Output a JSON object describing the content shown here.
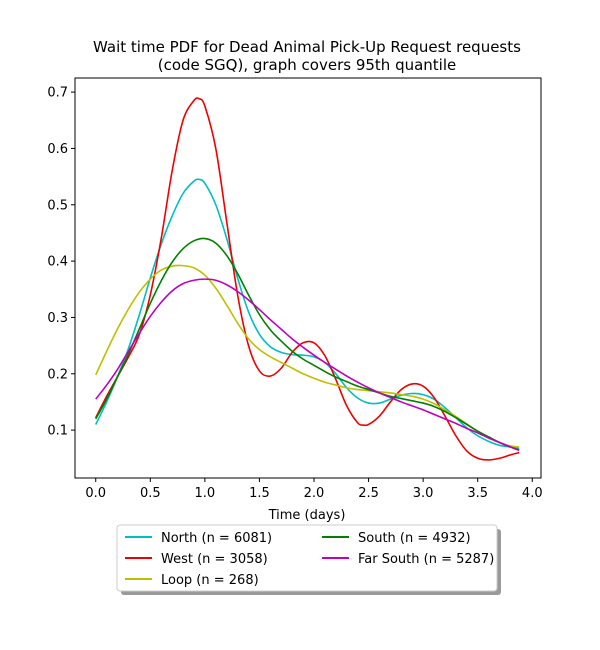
{
  "chart_data": {
    "type": "line",
    "title_line1": "Wait time PDF for Dead Animal Pick-Up Request  requests",
    "title_line2": "(code SGQ), graph covers 95th quantile",
    "xlabel": "Time (days)",
    "ylabel": "",
    "xlim": [
      -0.19,
      4.08
    ],
    "ylim": [
      0.015,
      0.725
    ],
    "xticks": [
      0.0,
      0.5,
      1.0,
      1.5,
      2.0,
      2.5,
      3.0,
      3.5,
      4.0
    ],
    "xtick_labels": [
      "0.0",
      "0.5",
      "1.0",
      "1.5",
      "2.0",
      "2.5",
      "3.0",
      "3.5",
      "4.0"
    ],
    "yticks": [
      0.1,
      0.2,
      0.3,
      0.4,
      0.5,
      0.6,
      0.7
    ],
    "ytick_labels": [
      "0.1",
      "0.2",
      "0.3",
      "0.4",
      "0.5",
      "0.6",
      "0.7"
    ],
    "grid": false,
    "legend_position": "below-center",
    "legend_columns": 2,
    "series": [
      {
        "name": "North (n = 6081)",
        "color": "#00bfbf",
        "points": [
          [
            0.0,
            0.11
          ],
          [
            0.1,
            0.15
          ],
          [
            0.2,
            0.195
          ],
          [
            0.3,
            0.245
          ],
          [
            0.4,
            0.305
          ],
          [
            0.5,
            0.37
          ],
          [
            0.6,
            0.43
          ],
          [
            0.7,
            0.48
          ],
          [
            0.8,
            0.52
          ],
          [
            0.9,
            0.542
          ],
          [
            0.95,
            0.545
          ],
          [
            1.0,
            0.538
          ],
          [
            1.1,
            0.5
          ],
          [
            1.2,
            0.44
          ],
          [
            1.3,
            0.37
          ],
          [
            1.4,
            0.31
          ],
          [
            1.5,
            0.27
          ],
          [
            1.6,
            0.248
          ],
          [
            1.7,
            0.238
          ],
          [
            1.8,
            0.234
          ],
          [
            1.9,
            0.233
          ],
          [
            2.0,
            0.23
          ],
          [
            2.1,
            0.22
          ],
          [
            2.2,
            0.2
          ],
          [
            2.3,
            0.175
          ],
          [
            2.4,
            0.157
          ],
          [
            2.5,
            0.148
          ],
          [
            2.6,
            0.148
          ],
          [
            2.7,
            0.155
          ],
          [
            2.8,
            0.162
          ],
          [
            2.9,
            0.165
          ],
          [
            3.0,
            0.163
          ],
          [
            3.1,
            0.155
          ],
          [
            3.2,
            0.14
          ],
          [
            3.3,
            0.122
          ],
          [
            3.4,
            0.104
          ],
          [
            3.5,
            0.09
          ],
          [
            3.6,
            0.08
          ],
          [
            3.7,
            0.073
          ],
          [
            3.8,
            0.07
          ],
          [
            3.88,
            0.068
          ]
        ]
      },
      {
        "name": "West (n = 3058)",
        "color": "#ee0000",
        "points": [
          [
            0.0,
            0.122
          ],
          [
            0.1,
            0.16
          ],
          [
            0.2,
            0.195
          ],
          [
            0.3,
            0.23
          ],
          [
            0.4,
            0.27
          ],
          [
            0.5,
            0.34
          ],
          [
            0.6,
            0.44
          ],
          [
            0.7,
            0.56
          ],
          [
            0.8,
            0.65
          ],
          [
            0.9,
            0.685
          ],
          [
            0.95,
            0.688
          ],
          [
            1.0,
            0.675
          ],
          [
            1.1,
            0.6
          ],
          [
            1.2,
            0.47
          ],
          [
            1.3,
            0.34
          ],
          [
            1.4,
            0.25
          ],
          [
            1.5,
            0.205
          ],
          [
            1.6,
            0.196
          ],
          [
            1.7,
            0.21
          ],
          [
            1.8,
            0.238
          ],
          [
            1.9,
            0.255
          ],
          [
            2.0,
            0.255
          ],
          [
            2.1,
            0.232
          ],
          [
            2.2,
            0.19
          ],
          [
            2.3,
            0.143
          ],
          [
            2.4,
            0.113
          ],
          [
            2.45,
            0.109
          ],
          [
            2.5,
            0.11
          ],
          [
            2.6,
            0.125
          ],
          [
            2.7,
            0.15
          ],
          [
            2.8,
            0.172
          ],
          [
            2.9,
            0.182
          ],
          [
            3.0,
            0.178
          ],
          [
            3.1,
            0.158
          ],
          [
            3.2,
            0.125
          ],
          [
            3.3,
            0.09
          ],
          [
            3.4,
            0.063
          ],
          [
            3.5,
            0.05
          ],
          [
            3.6,
            0.047
          ],
          [
            3.7,
            0.05
          ],
          [
            3.8,
            0.056
          ],
          [
            3.88,
            0.06
          ]
        ]
      },
      {
        "name": "Loop (n = 268)",
        "color": "#bfbf00",
        "points": [
          [
            0.0,
            0.198
          ],
          [
            0.1,
            0.24
          ],
          [
            0.2,
            0.28
          ],
          [
            0.3,
            0.315
          ],
          [
            0.4,
            0.345
          ],
          [
            0.5,
            0.368
          ],
          [
            0.6,
            0.384
          ],
          [
            0.7,
            0.391
          ],
          [
            0.8,
            0.392
          ],
          [
            0.9,
            0.388
          ],
          [
            1.0,
            0.375
          ],
          [
            1.1,
            0.352
          ],
          [
            1.2,
            0.322
          ],
          [
            1.3,
            0.29
          ],
          [
            1.4,
            0.262
          ],
          [
            1.5,
            0.243
          ],
          [
            1.6,
            0.23
          ],
          [
            1.7,
            0.22
          ],
          [
            1.8,
            0.21
          ],
          [
            1.9,
            0.2
          ],
          [
            2.0,
            0.192
          ],
          [
            2.1,
            0.185
          ],
          [
            2.2,
            0.18
          ],
          [
            2.3,
            0.175
          ],
          [
            2.4,
            0.172
          ],
          [
            2.5,
            0.17
          ],
          [
            2.6,
            0.168
          ],
          [
            2.7,
            0.166
          ],
          [
            2.8,
            0.163
          ],
          [
            2.9,
            0.16
          ],
          [
            3.0,
            0.155
          ],
          [
            3.1,
            0.147
          ],
          [
            3.2,
            0.136
          ],
          [
            3.3,
            0.124
          ],
          [
            3.4,
            0.111
          ],
          [
            3.5,
            0.098
          ],
          [
            3.6,
            0.087
          ],
          [
            3.7,
            0.078
          ],
          [
            3.8,
            0.072
          ],
          [
            3.88,
            0.07
          ]
        ]
      },
      {
        "name": "South (n = 4932)",
        "color": "#008000",
        "points": [
          [
            0.0,
            0.12
          ],
          [
            0.1,
            0.155
          ],
          [
            0.2,
            0.195
          ],
          [
            0.3,
            0.235
          ],
          [
            0.4,
            0.28
          ],
          [
            0.5,
            0.325
          ],
          [
            0.6,
            0.365
          ],
          [
            0.7,
            0.398
          ],
          [
            0.8,
            0.422
          ],
          [
            0.9,
            0.436
          ],
          [
            1.0,
            0.44
          ],
          [
            1.1,
            0.432
          ],
          [
            1.2,
            0.41
          ],
          [
            1.3,
            0.378
          ],
          [
            1.4,
            0.34
          ],
          [
            1.5,
            0.305
          ],
          [
            1.6,
            0.278
          ],
          [
            1.7,
            0.258
          ],
          [
            1.8,
            0.24
          ],
          [
            1.9,
            0.226
          ],
          [
            2.0,
            0.215
          ],
          [
            2.1,
            0.204
          ],
          [
            2.2,
            0.194
          ],
          [
            2.3,
            0.186
          ],
          [
            2.4,
            0.178
          ],
          [
            2.5,
            0.172
          ],
          [
            2.6,
            0.166
          ],
          [
            2.7,
            0.16
          ],
          [
            2.8,
            0.156
          ],
          [
            2.9,
            0.152
          ],
          [
            3.0,
            0.148
          ],
          [
            3.1,
            0.142
          ],
          [
            3.2,
            0.133
          ],
          [
            3.3,
            0.122
          ],
          [
            3.4,
            0.11
          ],
          [
            3.5,
            0.098
          ],
          [
            3.6,
            0.088
          ],
          [
            3.7,
            0.078
          ],
          [
            3.8,
            0.07
          ],
          [
            3.88,
            0.065
          ]
        ]
      },
      {
        "name": "Far South (n = 5287)",
        "color": "#bf00bf",
        "points": [
          [
            0.0,
            0.155
          ],
          [
            0.1,
            0.18
          ],
          [
            0.2,
            0.208
          ],
          [
            0.3,
            0.24
          ],
          [
            0.4,
            0.272
          ],
          [
            0.5,
            0.302
          ],
          [
            0.6,
            0.327
          ],
          [
            0.7,
            0.347
          ],
          [
            0.8,
            0.36
          ],
          [
            0.9,
            0.366
          ],
          [
            1.0,
            0.368
          ],
          [
            1.1,
            0.366
          ],
          [
            1.2,
            0.358
          ],
          [
            1.3,
            0.346
          ],
          [
            1.4,
            0.331
          ],
          [
            1.5,
            0.314
          ],
          [
            1.6,
            0.296
          ],
          [
            1.7,
            0.279
          ],
          [
            1.8,
            0.262
          ],
          [
            1.9,
            0.247
          ],
          [
            2.0,
            0.233
          ],
          [
            2.1,
            0.22
          ],
          [
            2.2,
            0.208
          ],
          [
            2.3,
            0.196
          ],
          [
            2.4,
            0.185
          ],
          [
            2.5,
            0.175
          ],
          [
            2.6,
            0.166
          ],
          [
            2.7,
            0.158
          ],
          [
            2.8,
            0.15
          ],
          [
            2.9,
            0.143
          ],
          [
            3.0,
            0.136
          ],
          [
            3.1,
            0.128
          ],
          [
            3.2,
            0.12
          ],
          [
            3.3,
            0.112
          ],
          [
            3.4,
            0.103
          ],
          [
            3.5,
            0.095
          ],
          [
            3.6,
            0.086
          ],
          [
            3.7,
            0.078
          ],
          [
            3.8,
            0.07
          ],
          [
            3.88,
            0.064
          ]
        ]
      }
    ]
  }
}
